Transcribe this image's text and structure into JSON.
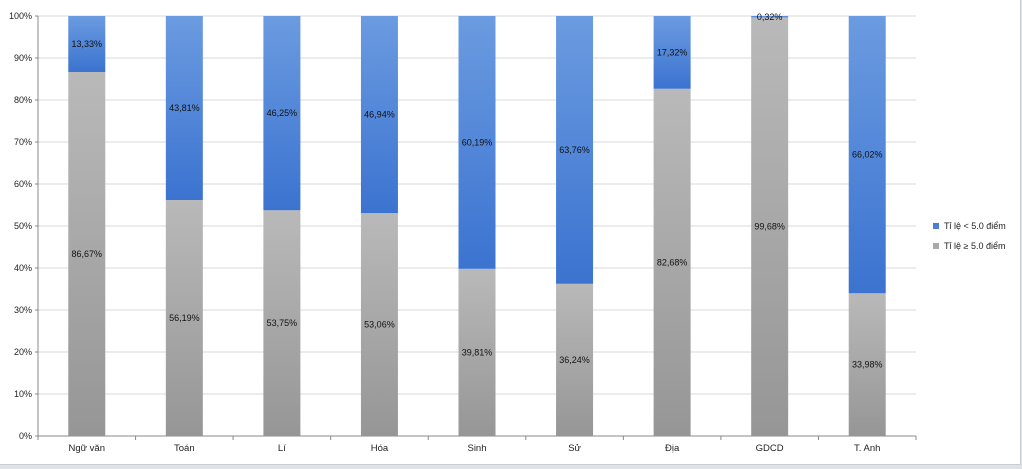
{
  "chart_data": {
    "type": "bar",
    "stacked": true,
    "normalized": true,
    "categories": [
      "Ngữ văn",
      "Toán",
      "Lí",
      "Hóa",
      "Sinh",
      "Sử",
      "Địa",
      "GDCD",
      "T. Anh"
    ],
    "series": [
      {
        "name": "Tỉ lệ ≥ 5.0 điểm",
        "color": "#a9a9a9",
        "values": [
          86.67,
          56.19,
          53.75,
          53.06,
          39.81,
          36.24,
          82.68,
          99.68,
          33.98
        ],
        "labels": [
          "86,67%",
          "56,19%",
          "53,75%",
          "53,06%",
          "39,81%",
          "36,24%",
          "82,68%",
          "99,68%",
          "33,98%"
        ]
      },
      {
        "name": "Tỉ lệ < 5.0 điểm",
        "color": "#4a7fd4",
        "values": [
          13.33,
          43.81,
          46.25,
          46.94,
          60.19,
          63.76,
          17.32,
          0.32,
          66.02
        ],
        "labels": [
          "13,33%",
          "43,81%",
          "46,25%",
          "46,94%",
          "60,19%",
          "63,76%",
          "17,32%",
          "0,32%",
          "66,02%"
        ]
      }
    ],
    "yticks": [
      "0%",
      "10%",
      "20%",
      "30%",
      "40%",
      "50%",
      "60%",
      "70%",
      "80%",
      "90%",
      "100%"
    ],
    "ylim": [
      0,
      100
    ],
    "grid": true,
    "legend_position": "right",
    "legend": [
      {
        "label": "Tỉ lệ < 5.0 điểm",
        "color": "#4a7fd4"
      },
      {
        "label": "Tỉ lệ ≥ 5.0 điểm",
        "color": "#a9a9a9"
      }
    ]
  }
}
